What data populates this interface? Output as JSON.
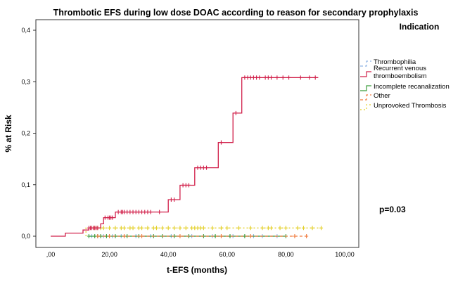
{
  "chart_data": {
    "type": "line",
    "subtype": "kaplan-meier-cumulative-risk",
    "title": "Thrombotic EFS during low dose DOAC according to reason for secondary prophylaxis",
    "xlabel": "t-EFS (months)",
    "ylabel": "% at Risk",
    "xlim": [
      0,
      100
    ],
    "ylim": [
      0,
      0.4
    ],
    "x_ticks": [
      {
        "value": 0,
        "label": ",00"
      },
      {
        "value": 20,
        "label": "20,00"
      },
      {
        "value": 40,
        "label": "40,00"
      },
      {
        "value": 60,
        "label": "60,00"
      },
      {
        "value": 80,
        "label": "80,00"
      },
      {
        "value": 100,
        "label": "100,00"
      }
    ],
    "y_ticks": [
      {
        "value": 0,
        "label": "0,0"
      },
      {
        "value": 0.1,
        "label": "0,1"
      },
      {
        "value": 0.2,
        "label": "0,2"
      },
      {
        "value": 0.3,
        "label": "0,3"
      },
      {
        "value": 0.4,
        "label": "0,4"
      }
    ],
    "legend": {
      "title": "Indication",
      "position": "top-right",
      "entries": [
        {
          "label": "Thrombophilia",
          "color": "#8fb4e3",
          "dash": "4 3"
        },
        {
          "label": "Recurrent venous\nthromboembolism",
          "color": "#d1204a",
          "dash": ""
        },
        {
          "label": "Incomplete recanalization",
          "color": "#3a9c3a",
          "dash": ""
        },
        {
          "label": "Other",
          "color": "#f07a3c",
          "dash": "4 3"
        },
        {
          "label": "Unprovoked Thrombosis",
          "color": "#e3cf24",
          "dash": "2 3"
        }
      ]
    },
    "annotation": "p=0.03",
    "series": [
      {
        "name": "Thrombophilia",
        "color": "#8fb4e3",
        "dash": "4 3",
        "steps": [
          [
            13,
            0
          ],
          [
            77,
            0
          ]
        ],
        "censored": [
          14,
          16,
          18,
          21,
          24,
          29,
          34,
          41,
          48,
          55,
          62,
          69,
          72,
          77
        ]
      },
      {
        "name": "Recurrent venous thromboembolism",
        "color": "#d1204a",
        "dash": "",
        "steps": [
          [
            0,
            0
          ],
          [
            5,
            0
          ],
          [
            5,
            0.006
          ],
          [
            11,
            0.006
          ],
          [
            11,
            0.012
          ],
          [
            13,
            0.012
          ],
          [
            13,
            0.016
          ],
          [
            17,
            0.016
          ],
          [
            17,
            0.024
          ],
          [
            18,
            0.024
          ],
          [
            18,
            0.036
          ],
          [
            22,
            0.036
          ],
          [
            22,
            0.047
          ],
          [
            40,
            0.047
          ],
          [
            40,
            0.071
          ],
          [
            44,
            0.071
          ],
          [
            44,
            0.099
          ],
          [
            49,
            0.099
          ],
          [
            49,
            0.133
          ],
          [
            57,
            0.133
          ],
          [
            57,
            0.182
          ],
          [
            62,
            0.182
          ],
          [
            62,
            0.239
          ],
          [
            65,
            0.239
          ],
          [
            65,
            0.308
          ],
          [
            91,
            0.308
          ]
        ],
        "censored": [
          13,
          13.5,
          14,
          14.5,
          15,
          15.5,
          16,
          18.5,
          19.5,
          20,
          20.5,
          21,
          23,
          24,
          24.5,
          25,
          26,
          27,
          28,
          29,
          30,
          31,
          32,
          33,
          34,
          37,
          41,
          42,
          45,
          46,
          47,
          50,
          51,
          52,
          53,
          58,
          63,
          66,
          67,
          68,
          69,
          70,
          71,
          73,
          74,
          75,
          77,
          79,
          81,
          85,
          88,
          90
        ]
      },
      {
        "name": "Incomplete recanalization",
        "color": "#3a9c3a",
        "dash": "",
        "steps": [
          [
            13,
            0
          ],
          [
            80,
            0
          ]
        ],
        "censored": [
          13,
          15,
          16,
          17,
          19,
          22,
          26,
          30,
          35,
          38,
          42,
          47,
          52,
          56,
          61,
          66,
          80
        ]
      },
      {
        "name": "Other",
        "color": "#f07a3c",
        "dash": "4 3",
        "steps": [
          [
            16,
            0
          ],
          [
            87,
            0
          ]
        ],
        "censored": [
          16,
          20,
          25,
          31,
          44,
          58,
          68,
          83,
          87
        ]
      },
      {
        "name": "Unprovoked Thrombosis",
        "color": "#e3cf24",
        "dash": "2 3",
        "steps": [
          [
            12,
            0
          ],
          [
            12,
            0.016
          ],
          [
            92,
            0.016
          ]
        ],
        "censored": [
          14,
          15,
          16,
          17,
          18,
          20,
          22,
          24,
          25,
          27,
          28,
          30,
          31,
          33,
          35,
          36,
          38,
          40,
          42,
          44,
          46,
          48,
          49,
          50,
          51,
          52,
          55,
          58,
          60,
          64,
          68,
          72,
          74,
          75,
          78,
          80,
          84,
          86,
          89,
          92
        ]
      }
    ]
  }
}
